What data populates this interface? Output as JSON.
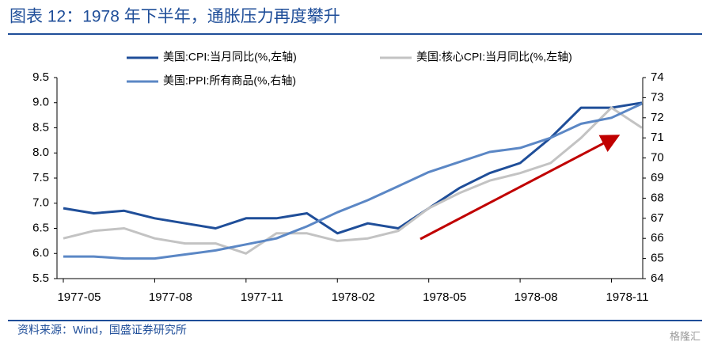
{
  "chart_data": {
    "type": "line",
    "title": "图表 12：1978 年下半年，通胀压力再度攀升",
    "source": "资料来源：Wind，国盛证券研究所",
    "watermark": "格隆汇",
    "categories": [
      "1977-05",
      null,
      null,
      "1977-08",
      null,
      null,
      "1977-11",
      null,
      null,
      "1978-02",
      null,
      null,
      "1978-05",
      null,
      null,
      "1978-08",
      null,
      null,
      "1978-11",
      null
    ],
    "series": [
      {
        "name": "美国:CPI:当月同比(%,左轴)",
        "color": "#1f4e99",
        "axis": "y",
        "values": [
          6.9,
          6.8,
          6.85,
          6.7,
          6.6,
          6.5,
          6.7,
          6.7,
          6.8,
          6.4,
          6.6,
          6.5,
          6.9,
          7.3,
          7.6,
          7.8,
          8.3,
          8.9,
          8.9,
          9.0
        ]
      },
      {
        "name": "美国:核心CPI:当月同比(%,左轴)",
        "color": "#c3c3c3",
        "axis": "y",
        "values": [
          6.3,
          6.45,
          6.5,
          6.3,
          6.2,
          6.2,
          6.0,
          6.4,
          6.4,
          6.25,
          6.3,
          6.45,
          6.9,
          7.2,
          7.45,
          7.6,
          7.8,
          8.3,
          8.9,
          8.5
        ]
      },
      {
        "name": "美国:PPI:所有商品(%,右轴)",
        "color": "#5b87c5",
        "axis": "y2",
        "values": [
          65.1,
          65.1,
          65.0,
          65.0,
          65.2,
          65.4,
          65.7,
          66.0,
          66.6,
          67.3,
          67.9,
          68.6,
          69.3,
          69.8,
          70.3,
          70.5,
          71.0,
          71.7,
          72.0,
          72.7
        ]
      }
    ],
    "ylim": [
      5.5,
      9.5
    ],
    "yticks": [
      5.5,
      {
        "value": 6,
        "label": "6.0"
      },
      6.5,
      {
        "value": 7,
        "label": "7.0"
      },
      7.5,
      {
        "value": 8,
        "label": "8.0"
      },
      8.5,
      {
        "value": 9,
        "label": "9.0"
      },
      9.5
    ],
    "y2lim": [
      64,
      74
    ],
    "y2ticks": [
      64,
      65,
      66,
      67,
      68,
      69,
      70,
      71,
      72,
      73,
      74
    ],
    "grid": false
  }
}
